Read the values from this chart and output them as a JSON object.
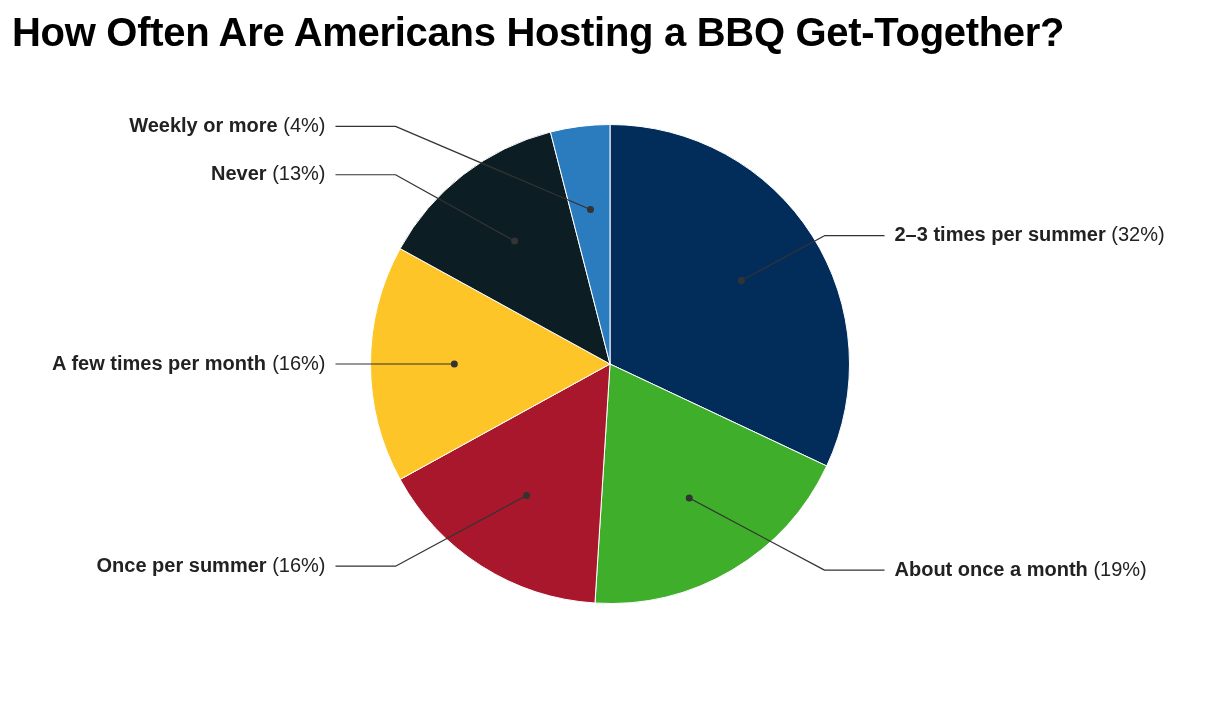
{
  "chart_data": {
    "type": "pie",
    "title": "How Often Are Americans Hosting a BBQ Get-Together?",
    "categories": [
      "2–3 times per summer",
      "About once a month",
      "Once per summer",
      "A few times per month",
      "Never",
      "Weekly or more"
    ],
    "values": [
      32,
      19,
      16,
      16,
      13,
      4
    ],
    "value_labels": [
      "(32%)",
      "(19%)",
      "(16%)",
      "(16%)",
      "(13%)",
      "(4%)"
    ],
    "colors": [
      "#022d5b",
      "#3fae2b",
      "#a8172b",
      "#fdc528",
      "#0c1e23",
      "#2b7bbf"
    ]
  }
}
